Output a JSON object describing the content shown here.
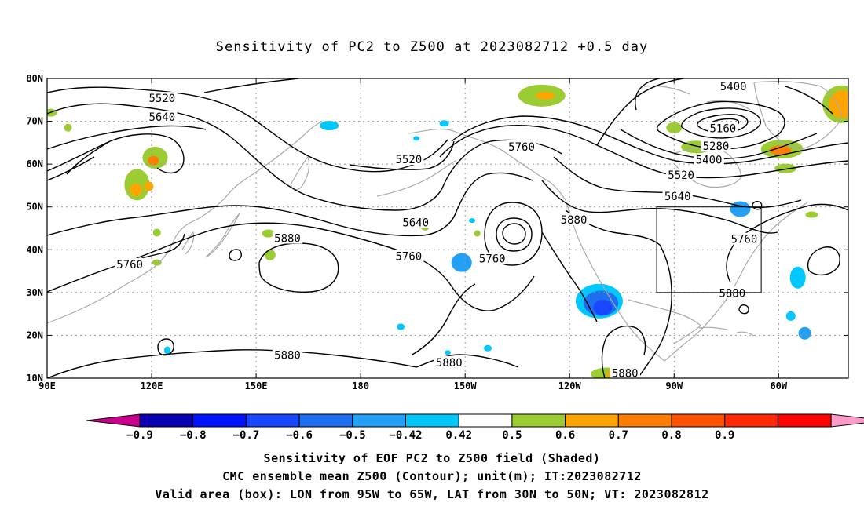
{
  "title": "Sensitivity of PC2 to Z500 at 2023082712 +0.5 day",
  "footer": {
    "line1": "Sensitivity of EOF PC2 to Z500 field (Shaded)",
    "line2": "CMC ensemble mean Z500 (Contour); unit(m); IT:2023082712",
    "line3": "Valid area (box): LON from 95W to 65W, LAT from 30N to 50N; VT: 2023082812"
  },
  "map": {
    "lon_range": [
      90,
      320
    ],
    "lat_range": [
      10,
      80
    ],
    "lon_ticks": [
      {
        "lon": 90,
        "label": "90E"
      },
      {
        "lon": 120,
        "label": "120E"
      },
      {
        "lon": 150,
        "label": "150E"
      },
      {
        "lon": 180,
        "label": "180"
      },
      {
        "lon": 210,
        "label": "150W"
      },
      {
        "lon": 240,
        "label": "120W"
      },
      {
        "lon": 270,
        "label": "90W"
      },
      {
        "lon": 300,
        "label": "60W"
      }
    ],
    "lat_ticks": [
      {
        "lat": 10,
        "label": "10N"
      },
      {
        "lat": 20,
        "label": "20N"
      },
      {
        "lat": 30,
        "label": "30N"
      },
      {
        "lat": 40,
        "label": "40N"
      },
      {
        "lat": 50,
        "label": "50N"
      },
      {
        "lat": 60,
        "label": "60N"
      },
      {
        "lat": 70,
        "label": "70N"
      },
      {
        "lat": 80,
        "label": "80N"
      }
    ],
    "valid_box": {
      "lon": [
        265,
        295
      ],
      "lat": [
        30,
        50
      ]
    },
    "contour_labels": [
      {
        "text": "5520",
        "lon": 123.0,
        "lat": 75.4
      },
      {
        "text": "5640",
        "lon": 123.0,
        "lat": 71.0
      },
      {
        "text": "5520",
        "lon": 193.8,
        "lat": 61.1
      },
      {
        "text": "5760",
        "lon": 226.2,
        "lat": 64.1
      },
      {
        "text": "5640",
        "lon": 195.8,
        "lat": 46.4
      },
      {
        "text": "5880",
        "lon": 159.0,
        "lat": 42.7
      },
      {
        "text": "5760",
        "lon": 193.8,
        "lat": 38.5
      },
      {
        "text": "5760",
        "lon": 217.8,
        "lat": 37.9
      },
      {
        "text": "5880",
        "lon": 241.2,
        "lat": 47.0
      },
      {
        "text": "5760",
        "lon": 113.7,
        "lat": 36.6
      },
      {
        "text": "5880",
        "lon": 159.0,
        "lat": 15.4
      },
      {
        "text": "5880",
        "lon": 205.4,
        "lat": 13.7
      },
      {
        "text": "5880",
        "lon": 255.9,
        "lat": 11.2
      },
      {
        "text": "5880",
        "lon": 286.7,
        "lat": 29.9
      },
      {
        "text": "5760",
        "lon": 290.1,
        "lat": 42.5
      },
      {
        "text": "5400",
        "lon": 287.0,
        "lat": 78.2
      },
      {
        "text": "5160",
        "lon": 284.0,
        "lat": 68.4
      },
      {
        "text": "5280",
        "lon": 282.0,
        "lat": 64.2
      },
      {
        "text": "5400",
        "lon": 280.0,
        "lat": 61.0
      },
      {
        "text": "5520",
        "lon": 272.0,
        "lat": 57.5
      },
      {
        "text": "5640",
        "lon": 271.0,
        "lat": 52.5
      }
    ]
  },
  "colorbar": {
    "colors": [
      "#c8008c",
      "#0a00b4",
      "#0014ff",
      "#1946ff",
      "#1e6ef0",
      "#23a0f5",
      "#00c8ff",
      "#ffffff",
      "#9bcd32",
      "#ffa500",
      "#ff7d00",
      "#ff5000",
      "#ff2800",
      "#ff0000",
      "#ff9bc8"
    ],
    "labels": [
      "−0.9",
      "−0.8",
      "−0.7",
      "−0.6",
      "−0.5",
      "−0.42",
      "0.42",
      "0.5",
      "0.6",
      "0.7",
      "0.8",
      "0.9"
    ]
  },
  "blobs": [
    {
      "c": "#9bcd32",
      "lon": 115.8,
      "lat": 55.2,
      "rx": 16,
      "ry": 20
    },
    {
      "c": "#9bcd32",
      "lon": 121.0,
      "lat": 61.5,
      "rx": 16,
      "ry": 14
    },
    {
      "c": "#ff7d00",
      "lon": 120.5,
      "lat": 60.8,
      "rx": 7,
      "ry": 6
    },
    {
      "c": "#ffa500",
      "lon": 115.5,
      "lat": 54.0,
      "rx": 8,
      "ry": 8
    },
    {
      "c": "#ffa500",
      "lon": 119.2,
      "lat": 54.8,
      "rx": 6,
      "ry": 6
    },
    {
      "c": "#9bcd32",
      "lon": 121.5,
      "lat": 44.0,
      "rx": 5,
      "ry": 5
    },
    {
      "c": "#9bcd32",
      "lon": 121.5,
      "lat": 37.0,
      "rx": 6,
      "ry": 4
    },
    {
      "c": "#9bcd32",
      "lon": 153.5,
      "lat": 43.8,
      "rx": 8,
      "ry": 5
    },
    {
      "c": "#9bcd32",
      "lon": 154.0,
      "lat": 38.8,
      "rx": 7,
      "ry": 7
    },
    {
      "c": "#9bcd32",
      "lon": 91.0,
      "lat": 72.0,
      "rx": 8,
      "ry": 5
    },
    {
      "c": "#9bcd32",
      "lon": 96.0,
      "lat": 68.5,
      "rx": 5,
      "ry": 5
    },
    {
      "c": "#9bcd32",
      "lon": 232.0,
      "lat": 76.0,
      "rx": 30,
      "ry": 14
    },
    {
      "c": "#ffa500",
      "lon": 233.0,
      "lat": 76.0,
      "rx": 12,
      "ry": 5
    },
    {
      "c": "#9bcd32",
      "lon": 270.0,
      "lat": 68.5,
      "rx": 10,
      "ry": 7
    },
    {
      "c": "#9bcd32",
      "lon": 276.5,
      "lat": 64.0,
      "rx": 20,
      "ry": 8
    },
    {
      "c": "#9bcd32",
      "lon": 301.0,
      "lat": 63.5,
      "rx": 27,
      "ry": 12
    },
    {
      "c": "#ff7d00",
      "lon": 300.5,
      "lat": 63.2,
      "rx": 14,
      "ry": 6
    },
    {
      "c": "#9bcd32",
      "lon": 302.0,
      "lat": 59.0,
      "rx": 14,
      "ry": 6
    },
    {
      "c": "#9bcd32",
      "lon": 318.0,
      "lat": 74.0,
      "rx": 24,
      "ry": 24
    },
    {
      "c": "#ffa500",
      "lon": 318.5,
      "lat": 74.0,
      "rx": 18,
      "ry": 18
    },
    {
      "c": "#9bcd32",
      "lon": 213.5,
      "lat": 43.8,
      "rx": 4,
      "ry": 4
    },
    {
      "c": "#9bcd32",
      "lon": 198.5,
      "lat": 45.2,
      "rx": 5,
      "ry": 4
    },
    {
      "c": "#9bcd32",
      "lon": 309.5,
      "lat": 48.2,
      "rx": 8,
      "ry": 4
    },
    {
      "c": "#9bcd32",
      "lon": 251.0,
      "lat": 11.0,
      "rx": 22,
      "ry": 8
    },
    {
      "c": "#ffa500",
      "lon": 252.5,
      "lat": 11.0,
      "rx": 9,
      "ry": 4
    },
    {
      "c": "#00c8ff",
      "lon": 171.0,
      "lat": 69.0,
      "rx": 12,
      "ry": 6
    },
    {
      "c": "#00c8ff",
      "lon": 204.0,
      "lat": 69.5,
      "rx": 6,
      "ry": 4
    },
    {
      "c": "#00c8ff",
      "lon": 196.0,
      "lat": 66.0,
      "rx": 4,
      "ry": 3
    },
    {
      "c": "#23a0f5",
      "lon": 209.0,
      "lat": 37.0,
      "rx": 13,
      "ry": 12
    },
    {
      "c": "#00c8ff",
      "lon": 248.5,
      "lat": 28.0,
      "rx": 30,
      "ry": 22
    },
    {
      "c": "#1e6ef0",
      "lon": 249.0,
      "lat": 27.5,
      "rx": 22,
      "ry": 16
    },
    {
      "c": "#1946ff",
      "lon": 249.5,
      "lat": 26.5,
      "rx": 12,
      "ry": 10
    },
    {
      "c": "#23a0f5",
      "lon": 289.0,
      "lat": 49.5,
      "rx": 13,
      "ry": 10
    },
    {
      "c": "#00c8ff",
      "lon": 305.5,
      "lat": 33.5,
      "rx": 10,
      "ry": 14
    },
    {
      "c": "#23a0f5",
      "lon": 307.5,
      "lat": 20.5,
      "rx": 8,
      "ry": 8
    },
    {
      "c": "#00c8ff",
      "lon": 303.5,
      "lat": 24.5,
      "rx": 6,
      "ry": 6
    },
    {
      "c": "#00c8ff",
      "lon": 124.5,
      "lat": 16.5,
      "rx": 4,
      "ry": 5
    },
    {
      "c": "#00c8ff",
      "lon": 212.0,
      "lat": 46.8,
      "rx": 4,
      "ry": 3
    },
    {
      "c": "#00c8ff",
      "lon": 191.5,
      "lat": 22.0,
      "rx": 5,
      "ry": 4
    },
    {
      "c": "#00c8ff",
      "lon": 216.5,
      "lat": 17.0,
      "rx": 5,
      "ry": 4
    },
    {
      "c": "#00c8ff",
      "lon": 205.0,
      "lat": 16.0,
      "rx": 4,
      "ry": 3
    }
  ]
}
